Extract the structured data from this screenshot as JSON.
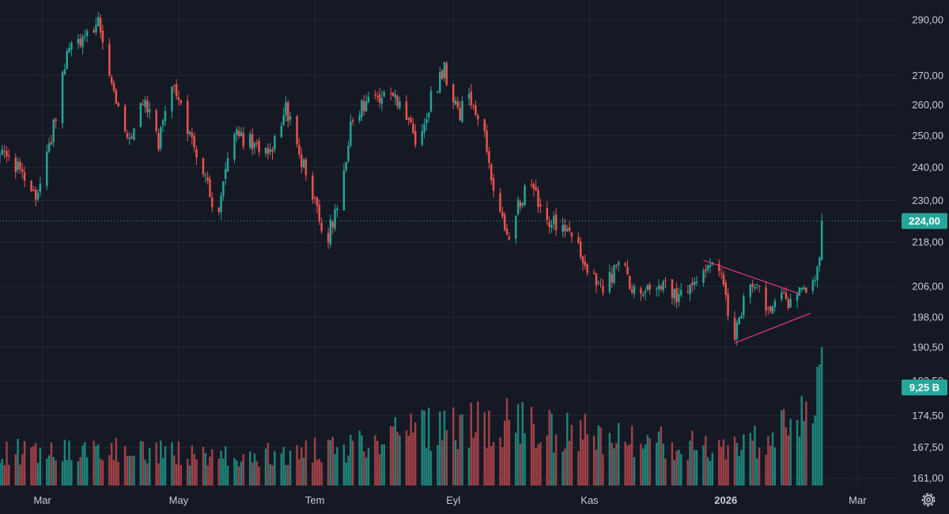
{
  "chart_data": {
    "type": "candlestick",
    "x_axis": {
      "type": "time",
      "range": [
        "2025-02-10",
        "2026-03-20"
      ],
      "tick_labels": [
        "Mar",
        "May",
        "Tem",
        "Eyl",
        "Kas",
        "2026",
        "Mar"
      ]
    },
    "y_axis": {
      "scale": "log",
      "range": [
        159,
        296
      ],
      "tick_labels": [
        "290,00",
        "270,00",
        "260,00",
        "250,00",
        "240,00",
        "230,00",
        "218,00",
        "206,00",
        "198,00",
        "190,50",
        "182,50",
        "174,50",
        "167,50",
        "161,00"
      ]
    },
    "last_price": {
      "value": 224,
      "label": "224,00"
    },
    "last_volume": {
      "label": "9,25 B"
    },
    "grid": true,
    "price_path": [
      [
        "2025-02-10",
        244
      ],
      [
        "2025-02-20",
        238
      ],
      [
        "2025-02-26",
        232
      ],
      [
        "2025-03-05",
        248
      ],
      [
        "2025-03-12",
        279
      ],
      [
        "2025-03-18",
        282
      ],
      [
        "2025-03-26",
        288
      ],
      [
        "2025-04-02",
        266
      ],
      [
        "2025-04-08",
        247
      ],
      [
        "2025-04-15",
        262
      ],
      [
        "2025-04-22",
        248
      ],
      [
        "2025-04-28",
        266
      ],
      [
        "2025-05-05",
        252
      ],
      [
        "2025-05-12",
        240
      ],
      [
        "2025-05-18",
        224
      ],
      [
        "2025-05-26",
        250
      ],
      [
        "2025-06-02",
        248
      ],
      [
        "2025-06-10",
        243
      ],
      [
        "2025-06-18",
        260
      ],
      [
        "2025-06-24",
        244
      ],
      [
        "2025-06-30",
        232
      ],
      [
        "2025-07-06",
        217
      ],
      [
        "2025-07-12",
        232
      ],
      [
        "2025-07-18",
        256
      ],
      [
        "2025-07-25",
        262
      ],
      [
        "2025-08-01",
        263
      ],
      [
        "2025-08-08",
        262
      ],
      [
        "2025-08-15",
        248
      ],
      [
        "2025-08-22",
        262
      ],
      [
        "2025-08-28",
        272
      ],
      [
        "2025-09-03",
        257
      ],
      [
        "2025-09-09",
        262
      ],
      [
        "2025-09-15",
        252
      ],
      [
        "2025-09-20",
        228
      ],
      [
        "2025-09-26",
        220
      ],
      [
        "2025-10-01",
        230
      ],
      [
        "2025-10-06",
        236
      ],
      [
        "2025-10-12",
        222
      ],
      [
        "2025-10-18",
        224
      ],
      [
        "2025-10-24",
        220
      ],
      [
        "2025-11-01",
        208
      ],
      [
        "2025-11-08",
        206
      ],
      [
        "2025-11-15",
        212
      ],
      [
        "2025-11-22",
        203
      ],
      [
        "2025-11-30",
        206
      ],
      [
        "2025-12-06",
        205
      ],
      [
        "2025-12-12",
        203
      ],
      [
        "2025-12-18",
        206
      ],
      [
        "2025-12-24",
        212
      ],
      [
        "2025-12-30",
        208
      ],
      [
        "2026-01-05",
        192
      ],
      [
        "2026-01-10",
        205
      ],
      [
        "2026-01-15",
        206
      ],
      [
        "2026-01-20",
        200
      ],
      [
        "2026-01-25",
        204
      ],
      [
        "2026-01-30",
        202
      ],
      [
        "2026-02-04",
        206
      ],
      [
        "2026-02-08",
        207
      ],
      [
        "2026-02-12",
        212
      ],
      [
        "2026-02-14",
        224
      ]
    ],
    "volume_path": [
      [
        "2025-02-10",
        0.34
      ],
      [
        "2025-03-05",
        0.4
      ],
      [
        "2025-04-15",
        0.36
      ],
      [
        "2025-06-01",
        0.32
      ],
      [
        "2025-07-15",
        0.4
      ],
      [
        "2025-08-20",
        0.62
      ],
      [
        "2025-09-10",
        0.66
      ],
      [
        "2025-09-25",
        0.7
      ],
      [
        "2025-10-15",
        0.58
      ],
      [
        "2025-11-10",
        0.55
      ],
      [
        "2025-12-10",
        0.45
      ],
      [
        "2026-01-05",
        0.38
      ],
      [
        "2026-01-20",
        0.52
      ],
      [
        "2026-02-01",
        0.7
      ],
      [
        "2026-02-06",
        0.92
      ],
      [
        "2026-02-14",
        1.0
      ]
    ],
    "drawings": {
      "triangle_upper": [
        [
          "2025-12-22",
          213
        ],
        [
          "2026-02-03",
          204
        ]
      ],
      "triangle_lower": [
        [
          "2026-01-05",
          191.5
        ],
        [
          "2026-02-08",
          199
        ]
      ]
    },
    "colors": {
      "up": "#26a69a",
      "down": "#ef5350",
      "volume_up": "#1f8a80",
      "volume_down": "#a8424a",
      "background": "#151924",
      "grid": "#232734",
      "price_tag": "#26a69a",
      "last_price_line": "#26a69a",
      "drawing": "#e0397a"
    }
  },
  "icons": {
    "settings": "settings-gear-icon"
  }
}
